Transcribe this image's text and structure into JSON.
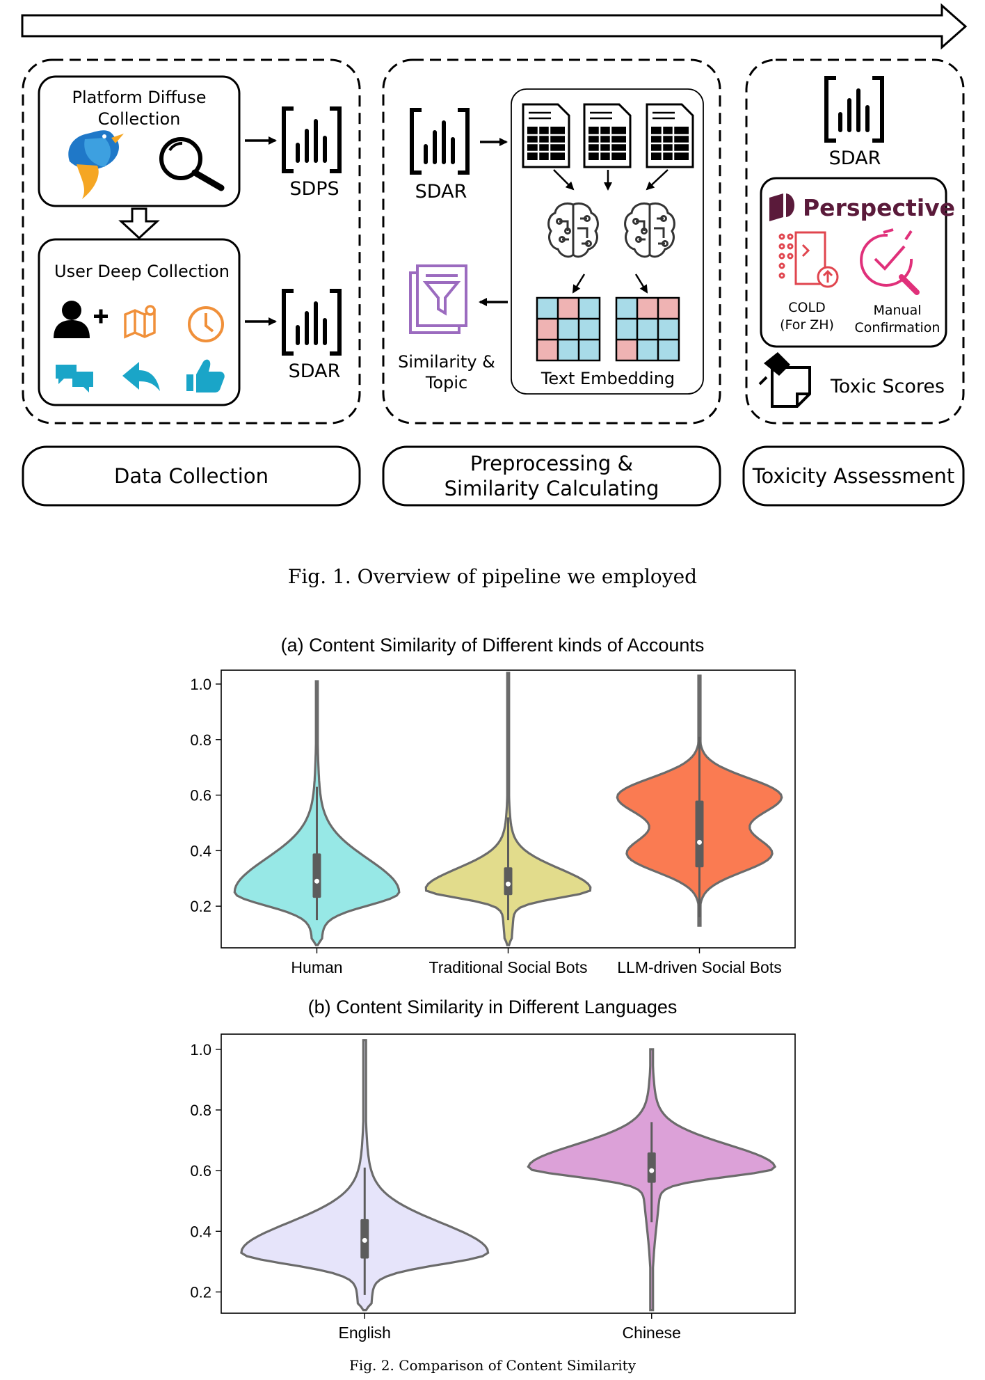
{
  "fig1": {
    "caption": "Fig. 1.  Overview of pipeline we employed",
    "data_collection": {
      "platform_box_title_1": "Platform Diffuse",
      "platform_box_title_2": "Collection",
      "platform_output": "SDPS",
      "user_box_title": "User Deep Collection",
      "user_output": "SDAR",
      "stage_label": "Data Collection"
    },
    "preprocessing": {
      "input_label": "SDAR",
      "embedding_label": "Text Embedding",
      "result_label_1": "Similarity &",
      "result_label_2": "Topic",
      "stage_label_1": "Preprocessing &",
      "stage_label_2": "Similarity Calculating"
    },
    "toxicity": {
      "input_label": "SDAR",
      "perspective_label": "Perspective",
      "cold_label_1": "COLD",
      "cold_label_2": "(For ZH)",
      "manual_label_1": "Manual",
      "manual_label_2": "Confirmation",
      "scores_label": "Toxic Scores",
      "stage_label": "Toxicity Assessment"
    },
    "colors": {
      "bird_blue": "#1f78c8",
      "bird_orange": "#f5a623",
      "icon_orange": "#f0903a",
      "icon_teal": "#1aa5c8",
      "purple": "#9b6bbf",
      "perspective": "#5a1a3a",
      "cold_red": "#e0454e",
      "manual_pink": "#e0307a",
      "cell_pink": "#efb3b3",
      "cell_blue": "#a8dbe8"
    }
  },
  "fig2": {
    "caption": "Fig. 2.  Comparison of Content Similarity",
    "chart_data": [
      {
        "type": "violin",
        "title": "(a) Content Similarity of Different kinds of Accounts",
        "xlabel": "",
        "ylabel": "",
        "categories": [
          "Human",
          "Traditional Social Bots",
          "LLM-driven Social Bots"
        ],
        "colors": [
          "#97e8e6",
          "#e2dc8c",
          "#fa7b52"
        ],
        "yticks": [
          0.2,
          0.4,
          0.6,
          0.8,
          1.0
        ],
        "ylim": [
          0.05,
          1.05
        ],
        "series": [
          {
            "min": 0.06,
            "max": 1.01,
            "q1": 0.23,
            "median": 0.29,
            "q3": 0.39,
            "whisker_low": 0.15,
            "whisker_high": 0.63,
            "mode": 0.25
          },
          {
            "min": 0.06,
            "max": 1.04,
            "q1": 0.24,
            "median": 0.28,
            "q3": 0.34,
            "whisker_low": 0.15,
            "whisker_high": 0.52,
            "mode": 0.26
          },
          {
            "min": 0.13,
            "max": 1.03,
            "q1": 0.34,
            "median": 0.43,
            "q3": 0.58,
            "whisker_low": 0.16,
            "whisker_high": 0.81,
            "mode": 0.6
          }
        ]
      },
      {
        "type": "violin",
        "title": "(b) Content Similarity in Different Languages",
        "xlabel": "",
        "ylabel": "",
        "categories": [
          "English",
          "Chinese"
        ],
        "colors": [
          "#e6e4fa",
          "#dca1d8"
        ],
        "yticks": [
          0.2,
          0.4,
          0.6,
          0.8,
          1.0
        ],
        "ylim": [
          0.13,
          1.05
        ],
        "series": [
          {
            "min": 0.14,
            "max": 1.03,
            "q1": 0.31,
            "median": 0.37,
            "q3": 0.44,
            "whisker_low": 0.19,
            "whisker_high": 0.61,
            "mode": 0.33
          },
          {
            "min": 0.14,
            "max": 1.0,
            "q1": 0.56,
            "median": 0.6,
            "q3": 0.66,
            "whisker_low": 0.43,
            "whisker_high": 0.76,
            "mode": 0.61
          }
        ]
      }
    ]
  }
}
